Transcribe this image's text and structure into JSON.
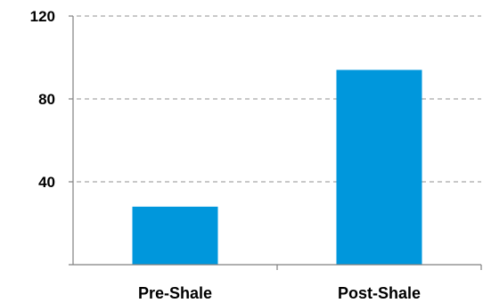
{
  "chart_data": {
    "type": "bar",
    "categories": [
      "Pre-Shale",
      "Post-Shale"
    ],
    "values": [
      28,
      94
    ],
    "ylim": [
      0,
      120
    ],
    "yticks": [
      40,
      80,
      120
    ],
    "ytick_labels": [
      "40",
      "80",
      "120"
    ],
    "grid": true,
    "bar_color": "#0097dc",
    "grid_color": "#a6a6a6",
    "axis_color": "#808080"
  }
}
